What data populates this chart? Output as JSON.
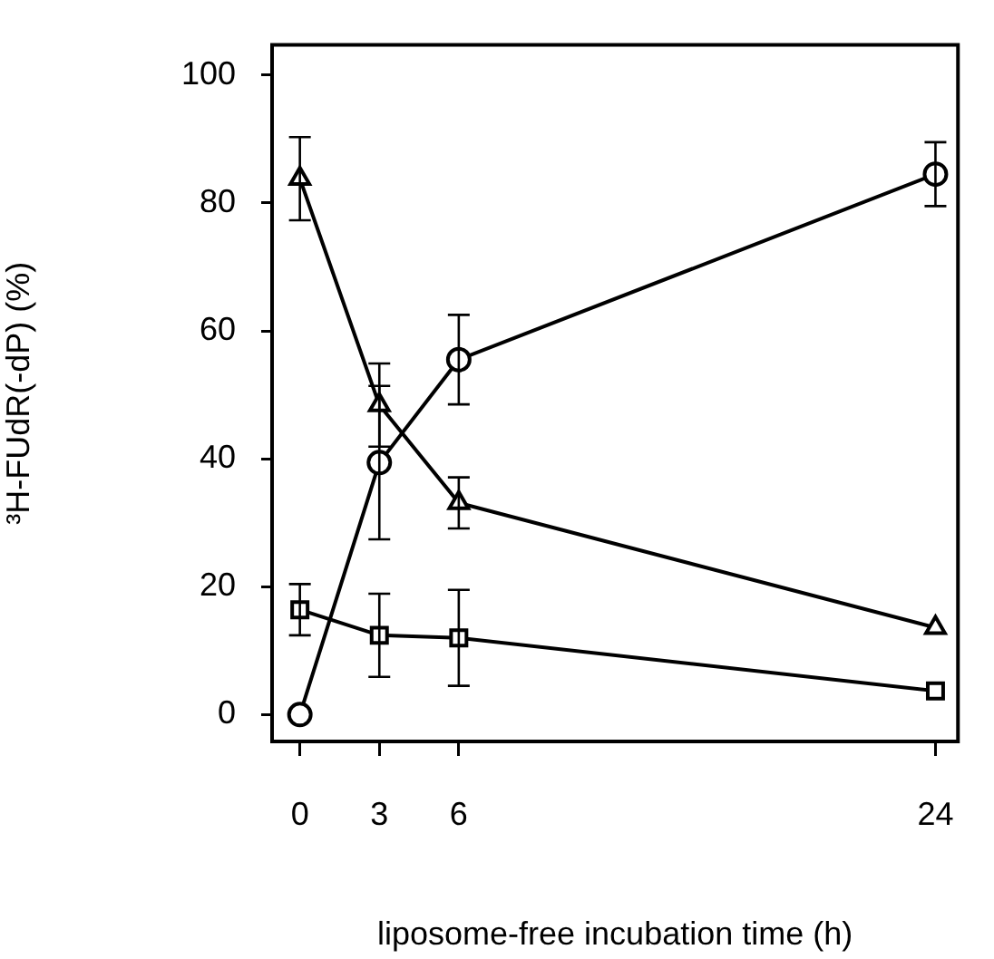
{
  "chart_data": {
    "type": "line",
    "xlabel": "liposome-free incubation time (h)",
    "ylabel": "³H-FUdR(-dP) (%)",
    "x": [
      0,
      3,
      6,
      24
    ],
    "series": [
      {
        "color": "#000000",
        "marker": "circle",
        "values": [
          0,
          39.4,
          55.5,
          84.5
        ],
        "errors": [
          null,
          12,
          7,
          5
        ]
      },
      {
        "color": "#000000",
        "marker": "triangle",
        "values": [
          83.8,
          48.4,
          33.1,
          13.6
        ],
        "errors": [
          6.5,
          6.5,
          4,
          null
        ]
      },
      {
        "color": "#000000",
        "marker": "square",
        "values": [
          16.4,
          12.4,
          12.0,
          3.7
        ],
        "errors": [
          4,
          6.5,
          7.5,
          null
        ]
      }
    ],
    "xlim": [
      -1.05,
      24.85
    ],
    "xticks": [
      0,
      3,
      6,
      24
    ],
    "ylim": [
      -4.2,
      104.7
    ],
    "yticks": [
      0,
      20,
      40,
      60,
      80,
      100
    ],
    "grid": false,
    "legend": false,
    "line_style": "solid"
  }
}
